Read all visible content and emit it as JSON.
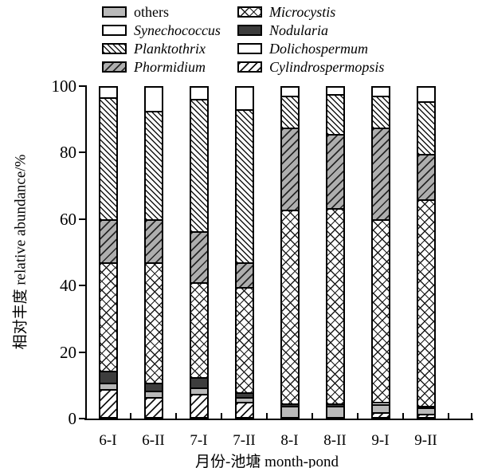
{
  "axes": {
    "y_title": "相对丰度 relative abundance/%",
    "x_title": "月份-池塘 month-pond"
  },
  "legend": {
    "columns": [
      {
        "items": [
          {
            "label": "others",
            "italic": false,
            "pattern": "others"
          },
          {
            "label": "Synechococcus",
            "italic": true,
            "pattern": "synechococcus"
          },
          {
            "label": "Planktothrix",
            "italic": true,
            "pattern": "planktothrix"
          },
          {
            "label": "Phormidium",
            "italic": true,
            "pattern": "phormidium"
          }
        ]
      },
      {
        "items": [
          {
            "label": "Microcystis",
            "italic": true,
            "pattern": "microcystis"
          },
          {
            "label": "Nodularia",
            "italic": true,
            "pattern": "nodularia"
          },
          {
            "label": "Dolichospermum",
            "italic": true,
            "pattern": "dolichospermum"
          },
          {
            "label": "Cylindrospermopsis",
            "italic": true,
            "pattern": "cylindrospermopsis"
          }
        ]
      }
    ]
  },
  "chart_data": {
    "type": "bar",
    "stacked": true,
    "title": "",
    "xlabel": "月份-池塘 month-pond",
    "ylabel": "相对丰度 relative abundance/%",
    "ylim": [
      0,
      100
    ],
    "y_ticks": [
      0,
      20,
      40,
      60,
      80,
      100
    ],
    "grid": false,
    "legend_position": "top",
    "stack_order": "bottom_to_top",
    "categories": [
      "6-I",
      "6-II",
      "7-I",
      "7-II",
      "8-I",
      "8-II",
      "9-I",
      "9-II"
    ],
    "series": [
      {
        "name": "Cylindrospermopsis",
        "pattern": "cylindrospermopsis",
        "values": [
          8.5,
          6,
          7,
          4.5,
          0,
          0,
          1.5,
          1
        ]
      },
      {
        "name": "others",
        "pattern": "others",
        "values": [
          2,
          2,
          2,
          1.5,
          3.5,
          3.5,
          2.5,
          2
        ]
      },
      {
        "name": "Nodularia",
        "pattern": "nodularia",
        "values": [
          3.5,
          2.5,
          3,
          1.5,
          0.5,
          0.5,
          0.5,
          0.5
        ]
      },
      {
        "name": "Microcystis",
        "pattern": "microcystis",
        "values": [
          33,
          36.5,
          29,
          32,
          59,
          59.5,
          55.5,
          62.5
        ]
      },
      {
        "name": "Phormidium",
        "pattern": "phormidium",
        "values": [
          13,
          13,
          15.5,
          7.5,
          25,
          22.5,
          28,
          14
        ]
      },
      {
        "name": "Planktothrix",
        "pattern": "planktothrix",
        "values": [
          37,
          33,
          40,
          46.5,
          9.5,
          12,
          9.5,
          16
        ]
      },
      {
        "name": "Dolichospermum",
        "pattern": "dolichospermum",
        "values": [
          0,
          0,
          0,
          0,
          0,
          0,
          0,
          0
        ]
      },
      {
        "name": "Synechococcus",
        "pattern": "synechococcus",
        "values": [
          3,
          7,
          3.5,
          6.5,
          2.5,
          2,
          2.5,
          4
        ]
      }
    ]
  },
  "colors": {
    "foreground": "#000000",
    "background": "#ffffff",
    "gray_fill": "#b9b9b9",
    "dark_fill": "#3d3d3d"
  }
}
